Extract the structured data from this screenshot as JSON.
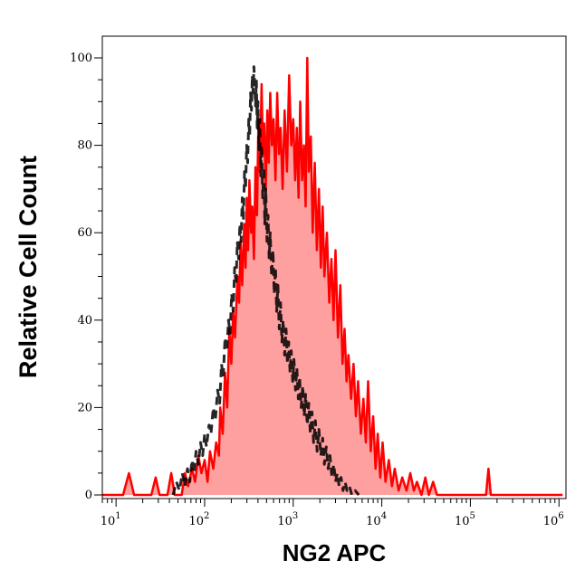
{
  "chart_data": {
    "type": "area",
    "title": "",
    "xlabel": "NG2 APC",
    "ylabel": "Relative Cell Count",
    "x_scale": "log",
    "xlim": [
      7,
      1200000
    ],
    "ylim": [
      0,
      105
    ],
    "x_ticks": [
      {
        "base": "10",
        "exp": "1",
        "value": 10
      },
      {
        "base": "10",
        "exp": "2",
        "value": 100
      },
      {
        "base": "10",
        "exp": "3",
        "value": 1000
      },
      {
        "base": "10",
        "exp": "4",
        "value": 10000
      },
      {
        "base": "10",
        "exp": "5",
        "value": 100000
      },
      {
        "base": "10",
        "exp": "6",
        "value": 1000000
      }
    ],
    "y_ticks": [
      {
        "label": "0",
        "value": 0
      },
      {
        "label": "20",
        "value": 20
      },
      {
        "label": "40",
        "value": 40
      },
      {
        "label": "60",
        "value": 60
      },
      {
        "label": "80",
        "value": 80
      },
      {
        "label": "100",
        "value": 100
      }
    ],
    "grid": false,
    "series": [
      {
        "style": "filled-solid",
        "color": "#ff0000",
        "fill": "#ffa0a0",
        "points": [
          [
            7,
            0
          ],
          [
            12,
            0
          ],
          [
            14,
            5
          ],
          [
            16,
            0
          ],
          [
            25,
            0
          ],
          [
            28,
            4
          ],
          [
            31,
            0
          ],
          [
            38,
            0
          ],
          [
            42,
            5
          ],
          [
            46,
            0
          ],
          [
            55,
            0
          ],
          [
            60,
            5
          ],
          [
            65,
            2
          ],
          [
            72,
            6
          ],
          [
            78,
            3
          ],
          [
            85,
            9
          ],
          [
            92,
            5
          ],
          [
            100,
            8
          ],
          [
            108,
            3
          ],
          [
            115,
            10
          ],
          [
            125,
            6
          ],
          [
            135,
            12
          ],
          [
            145,
            9
          ],
          [
            150,
            20
          ],
          [
            160,
            14
          ],
          [
            170,
            28
          ],
          [
            180,
            20
          ],
          [
            190,
            38
          ],
          [
            200,
            30
          ],
          [
            210,
            42
          ],
          [
            220,
            36
          ],
          [
            235,
            50
          ],
          [
            245,
            44
          ],
          [
            255,
            58
          ],
          [
            265,
            48
          ],
          [
            280,
            62
          ],
          [
            290,
            52
          ],
          [
            300,
            68
          ],
          [
            310,
            56
          ],
          [
            320,
            72
          ],
          [
            335,
            60
          ],
          [
            345,
            66
          ],
          [
            360,
            54
          ],
          [
            375,
            75
          ],
          [
            390,
            64
          ],
          [
            405,
            86
          ],
          [
            420,
            74
          ],
          [
            440,
            94
          ],
          [
            455,
            78
          ],
          [
            470,
            85
          ],
          [
            490,
            70
          ],
          [
            510,
            88
          ],
          [
            530,
            76
          ],
          [
            550,
            92
          ],
          [
            575,
            80
          ],
          [
            600,
            86
          ],
          [
            630,
            72
          ],
          [
            660,
            92
          ],
          [
            690,
            78
          ],
          [
            720,
            84
          ],
          [
            760,
            70
          ],
          [
            800,
            88
          ],
          [
            850,
            74
          ],
          [
            900,
            96
          ],
          [
            950,
            80
          ],
          [
            1000,
            86
          ],
          [
            1050,
            72
          ],
          [
            1100,
            84
          ],
          [
            1150,
            68
          ],
          [
            1200,
            90
          ],
          [
            1260,
            72
          ],
          [
            1320,
            80
          ],
          [
            1380,
            66
          ],
          [
            1440,
            100
          ],
          [
            1500,
            74
          ],
          [
            1580,
            82
          ],
          [
            1660,
            60
          ],
          [
            1750,
            76
          ],
          [
            1850,
            56
          ],
          [
            1950,
            70
          ],
          [
            2050,
            52
          ],
          [
            2150,
            66
          ],
          [
            2250,
            50
          ],
          [
            2400,
            60
          ],
          [
            2550,
            44
          ],
          [
            2700,
            54
          ],
          [
            2850,
            40
          ],
          [
            3000,
            56
          ],
          [
            3200,
            36
          ],
          [
            3400,
            48
          ],
          [
            3600,
            30
          ],
          [
            3800,
            38
          ],
          [
            4000,
            26
          ],
          [
            4200,
            32
          ],
          [
            4500,
            22
          ],
          [
            4800,
            30
          ],
          [
            5100,
            18
          ],
          [
            5400,
            26
          ],
          [
            5800,
            14
          ],
          [
            6200,
            22
          ],
          [
            6600,
            12
          ],
          [
            7000,
            26
          ],
          [
            7500,
            10
          ],
          [
            8000,
            18
          ],
          [
            8500,
            6
          ],
          [
            9000,
            14
          ],
          [
            9600,
            4
          ],
          [
            10200,
            12
          ],
          [
            11000,
            3
          ],
          [
            12000,
            8
          ],
          [
            13000,
            2
          ],
          [
            14000,
            6
          ],
          [
            15500,
            1
          ],
          [
            17000,
            4
          ],
          [
            19000,
            1
          ],
          [
            21000,
            5
          ],
          [
            23000,
            1
          ],
          [
            25000,
            3
          ],
          [
            28000,
            0
          ],
          [
            31000,
            4
          ],
          [
            34000,
            0
          ],
          [
            38000,
            3
          ],
          [
            42000,
            0
          ],
          [
            60000,
            0
          ],
          [
            100000,
            0
          ],
          [
            150000,
            0
          ],
          [
            160000,
            6
          ],
          [
            170000,
            0
          ],
          [
            300000,
            0
          ],
          [
            600000,
            0
          ],
          [
            1100000,
            0
          ]
        ]
      },
      {
        "style": "dashed-black",
        "color": "#000000",
        "fill": "none",
        "points": [
          [
            44,
            0
          ],
          [
            48,
            3
          ],
          [
            52,
            1
          ],
          [
            56,
            5
          ],
          [
            60,
            2
          ],
          [
            64,
            6
          ],
          [
            68,
            3
          ],
          [
            72,
            8
          ],
          [
            76,
            5
          ],
          [
            80,
            10
          ],
          [
            85,
            7
          ],
          [
            90,
            12
          ],
          [
            95,
            9
          ],
          [
            100,
            14
          ],
          [
            105,
            11
          ],
          [
            112,
            16
          ],
          [
            118,
            14
          ],
          [
            125,
            20
          ],
          [
            132,
            17
          ],
          [
            140,
            24
          ],
          [
            148,
            21
          ],
          [
            155,
            30
          ],
          [
            162,
            27
          ],
          [
            170,
            36
          ],
          [
            178,
            33
          ],
          [
            186,
            40
          ],
          [
            194,
            37
          ],
          [
            202,
            46
          ],
          [
            210,
            42
          ],
          [
            218,
            52
          ],
          [
            226,
            48
          ],
          [
            234,
            58
          ],
          [
            242,
            54
          ],
          [
            250,
            62
          ],
          [
            258,
            58
          ],
          [
            266,
            68
          ],
          [
            274,
            63
          ],
          [
            282,
            74
          ],
          [
            290,
            70
          ],
          [
            298,
            80
          ],
          [
            306,
            76
          ],
          [
            315,
            86
          ],
          [
            322,
            82
          ],
          [
            330,
            92
          ],
          [
            338,
            88
          ],
          [
            345,
            96
          ],
          [
            352,
            92
          ],
          [
            360,
            98
          ],
          [
            368,
            94
          ],
          [
            376,
            89
          ],
          [
            384,
            95
          ],
          [
            392,
            84
          ],
          [
            400,
            90
          ],
          [
            410,
            79
          ],
          [
            420,
            86
          ],
          [
            430,
            73
          ],
          [
            440,
            80
          ],
          [
            452,
            68
          ],
          [
            465,
            75
          ],
          [
            478,
            62
          ],
          [
            490,
            70
          ],
          [
            505,
            58
          ],
          [
            520,
            64
          ],
          [
            535,
            54
          ],
          [
            550,
            60
          ],
          [
            570,
            50
          ],
          [
            590,
            56
          ],
          [
            610,
            46
          ],
          [
            630,
            52
          ],
          [
            650,
            42
          ],
          [
            672,
            48
          ],
          [
            695,
            38
          ],
          [
            720,
            44
          ],
          [
            745,
            35
          ],
          [
            770,
            40
          ],
          [
            800,
            32
          ],
          [
            830,
            38
          ],
          [
            860,
            30
          ],
          [
            890,
            35
          ],
          [
            920,
            28
          ],
          [
            950,
            33
          ],
          [
            985,
            26
          ],
          [
            1020,
            31
          ],
          [
            1060,
            24
          ],
          [
            1100,
            29
          ],
          [
            1140,
            22
          ],
          [
            1180,
            27
          ],
          [
            1230,
            20
          ],
          [
            1280,
            25
          ],
          [
            1330,
            18
          ],
          [
            1380,
            23
          ],
          [
            1440,
            16
          ],
          [
            1500,
            21
          ],
          [
            1560,
            14
          ],
          [
            1630,
            19
          ],
          [
            1700,
            12
          ],
          [
            1780,
            17
          ],
          [
            1860,
            10
          ],
          [
            1950,
            15
          ],
          [
            2050,
            9
          ],
          [
            2150,
            13
          ],
          [
            2250,
            7
          ],
          [
            2360,
            11
          ],
          [
            2480,
            6
          ],
          [
            2600,
            9
          ],
          [
            2730,
            4
          ],
          [
            2870,
            7
          ],
          [
            3000,
            3
          ],
          [
            3150,
            5
          ],
          [
            3300,
            2
          ],
          [
            3470,
            4
          ],
          [
            3650,
            1
          ],
          [
            3850,
            3
          ],
          [
            4050,
            1
          ],
          [
            4300,
            2
          ],
          [
            4600,
            0
          ],
          [
            5000,
            1
          ],
          [
            5500,
            0
          ]
        ]
      }
    ]
  }
}
